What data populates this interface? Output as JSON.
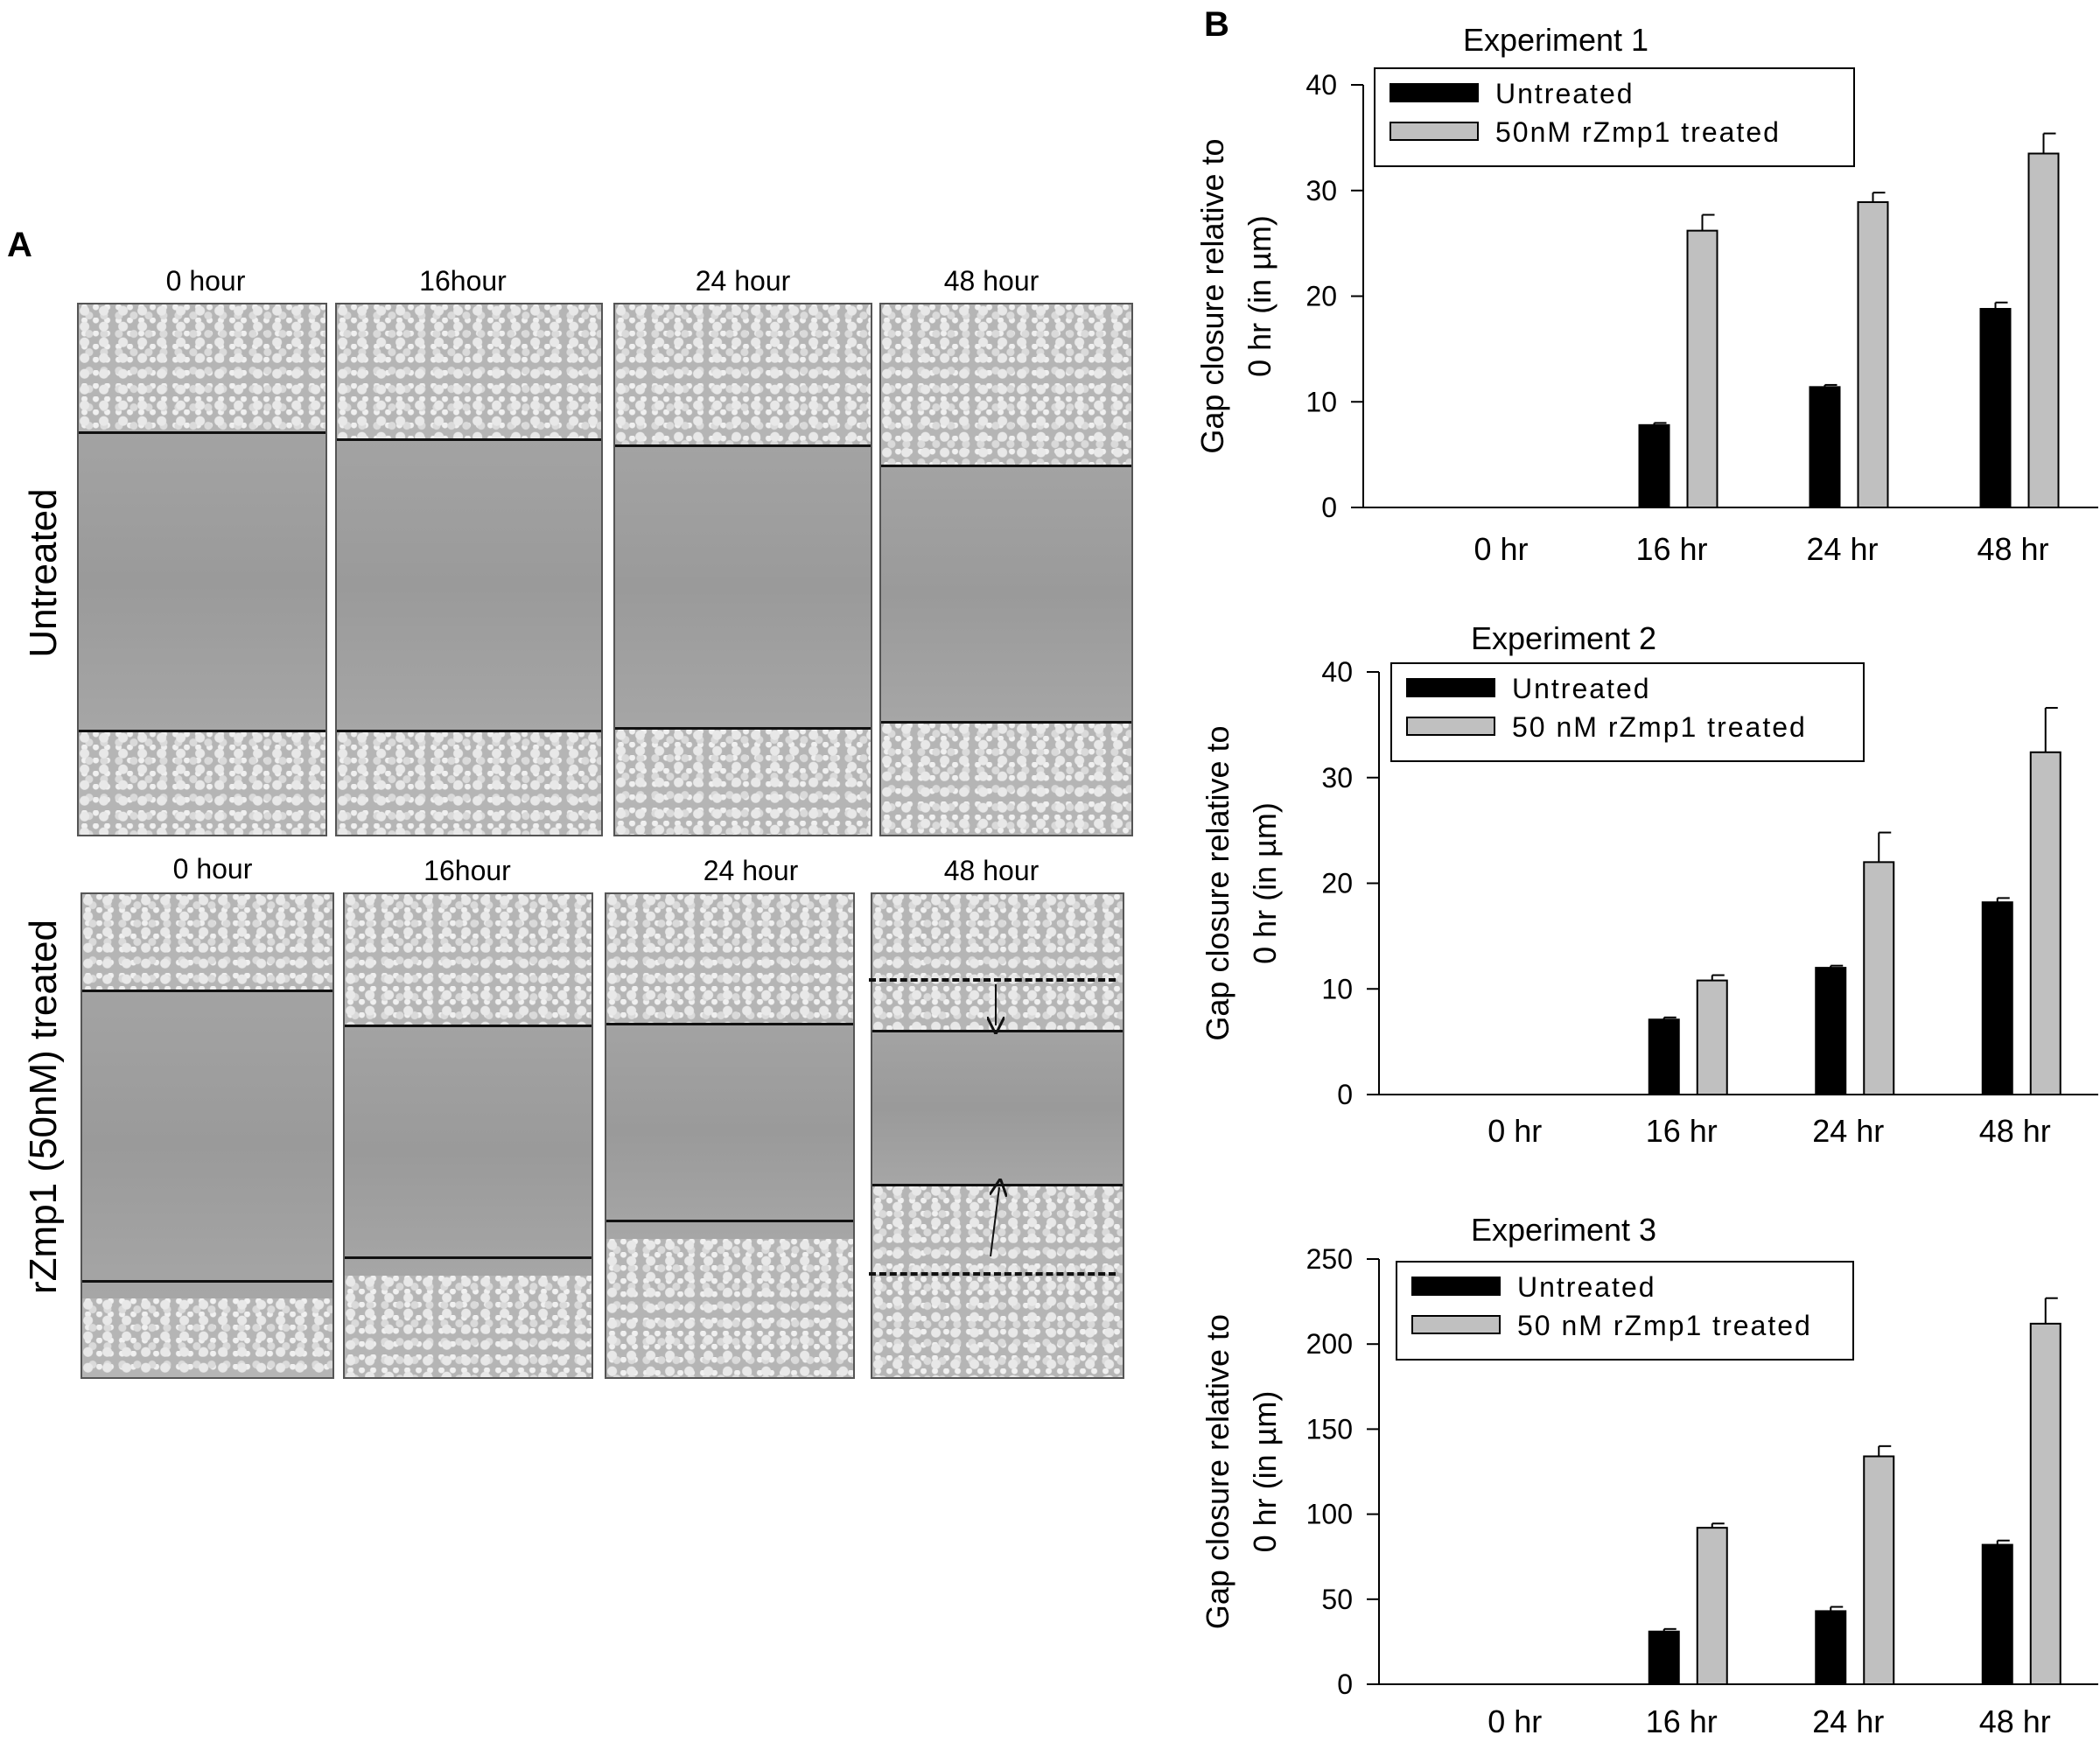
{
  "panel_a": {
    "letter": "A",
    "rows": [
      {
        "label": "Untreated",
        "timepoints": [
          "0 hour",
          "16hour",
          "24 hour",
          "48 hour"
        ]
      },
      {
        "label": "rZmp1 (50nM) treated",
        "timepoints": [
          "0 hour",
          "16hour",
          "24 hour",
          "48 hour"
        ]
      }
    ]
  },
  "panel_b": {
    "letter": "B"
  },
  "colors": {
    "untreated": "#000000",
    "treated": "#c0c0c0"
  },
  "chart_data": [
    {
      "type": "bar",
      "title": "Experiment 1",
      "ylabel_line1": "Gap closure relative to",
      "ylabel_line2": "0 hr (in µm)",
      "categories": [
        "0 hr",
        "16 hr",
        "24 hr",
        "48 hr"
      ],
      "ylim": [
        0,
        40
      ],
      "yticks": [
        0,
        10,
        20,
        30,
        40
      ],
      "legend_position": "top-left",
      "series": [
        {
          "name": "Untreated",
          "values": [
            0,
            7.8,
            11.4,
            18.8
          ],
          "errors": [
            0,
            0.2,
            0.2,
            0.6
          ]
        },
        {
          "name": "50nM rZmp1 treated",
          "values": [
            0,
            26.2,
            28.9,
            33.5
          ],
          "errors": [
            0,
            1.5,
            0.9,
            1.9
          ]
        }
      ]
    },
    {
      "type": "bar",
      "title": "Experiment 2",
      "ylabel_line1": "Gap closure relative to",
      "ylabel_line2": "0 hr (in µm)",
      "categories": [
        "0 hr",
        "16 hr",
        "24 hr",
        "48 hr"
      ],
      "ylim": [
        0,
        40
      ],
      "yticks": [
        0,
        10,
        20,
        30,
        40
      ],
      "legend_position": "top-left",
      "series": [
        {
          "name": "Untreated",
          "values": [
            0,
            7.1,
            12.0,
            18.2
          ],
          "errors": [
            0,
            0.2,
            0.2,
            0.4
          ]
        },
        {
          "name": "50 nM rZmp1 treated",
          "values": [
            0,
            10.8,
            22.0,
            32.4
          ],
          "errors": [
            0,
            0.5,
            2.8,
            4.2
          ]
        }
      ]
    },
    {
      "type": "bar",
      "title": "Experiment 3",
      "ylabel_line1": "Gap closure relative to",
      "ylabel_line2": "0 hr (in µm)",
      "categories": [
        "0 hr",
        "16 hr",
        "24 hr",
        "48 hr"
      ],
      "ylim": [
        0,
        250
      ],
      "yticks": [
        0,
        50,
        100,
        150,
        200,
        250
      ],
      "legend_position": "top-left",
      "series": [
        {
          "name": "Untreated",
          "values": [
            0,
            31,
            43,
            82
          ],
          "errors": [
            0,
            1.5,
            2.5,
            2.5
          ]
        },
        {
          "name": "50 nM rZmp1 treated",
          "values": [
            0,
            92,
            134,
            212
          ],
          "errors": [
            0,
            2.5,
            6,
            15
          ]
        }
      ]
    }
  ]
}
